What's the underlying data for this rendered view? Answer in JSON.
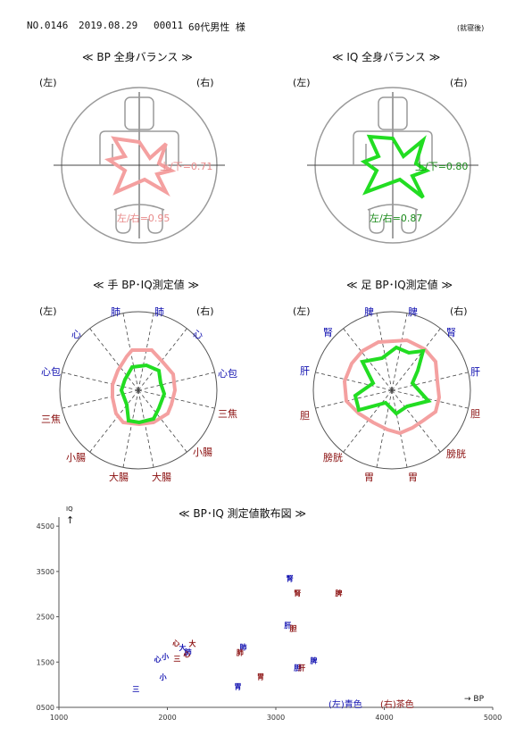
{
  "header": {
    "record_no": "NO.0146",
    "date": "2019.08.29",
    "patient_id": "00011",
    "patient": "60代男性 様",
    "note": "(就寝後)"
  },
  "bp_balance": {
    "title": "≪ BP 全身バランス ≫",
    "left": "(左)",
    "right": "(右)",
    "ud_label": "上/下=0.71",
    "lr_label": "左/右=0.95",
    "ud": 0.71,
    "lr": 0.95,
    "color": "#f4a0a0"
  },
  "iq_balance": {
    "title": "≪ IQ 全身バランス ≫",
    "left": "(左)",
    "right": "(右)",
    "ud_label": "上/下=0.80",
    "lr_label": "左/右=0.87",
    "ud": 0.8,
    "lr": 0.87,
    "color": "#22dd22"
  },
  "hand_radar": {
    "title": "≪ 手 BP･IQ測定値 ≫",
    "left": "(左)",
    "right": "(右)",
    "labels": {
      "lung_l": "肺",
      "lung_r": "肺",
      "heart_l": "心",
      "heart_r": "心",
      "pericardium_l": "心包",
      "pericardium_r": "心包",
      "sanjiao_l": "三焦",
      "sanjiao_r": "三焦",
      "small_int_l": "小腸",
      "small_int_r": "小腸",
      "large_int_l": "大腸",
      "large_int_r": "大腸"
    }
  },
  "foot_radar": {
    "title": "≪ 足 BP･IQ測定値 ≫",
    "left": "(左)",
    "right": "(右)",
    "labels": {
      "spleen_l": "脾",
      "spleen_r": "脾",
      "kidney_l": "腎",
      "kidney_r": "腎",
      "liver_l": "肝",
      "liver_r": "肝",
      "gall_l": "胆",
      "gall_r": "胆",
      "bladder_l": "膀胱",
      "bladder_r": "膀胱",
      "stomach_l": "胃",
      "stomach_r": "胃"
    }
  },
  "scatter": {
    "title": "≪ BP･IQ 測定値散布図 ≫",
    "y_axis_label": "IQ",
    "x_axis_label": "→ BP",
    "legend_left": "(左)青色",
    "legend_right": "(右)茶色",
    "colors": {
      "left": "#1010b0",
      "right": "#8b1010"
    }
  },
  "chart_data": {
    "type": "scatter",
    "title": "≪ BP･IQ 測定値散布図 ≫",
    "xlabel": "BP",
    "ylabel": "IQ",
    "xlim": [
      1000,
      5000
    ],
    "ylim": [
      500,
      4700
    ],
    "xticks": [
      "1000",
      "2000",
      "3000",
      "4000",
      "5000"
    ],
    "yticks": [
      "0500",
      "1500",
      "2500",
      "3500",
      "4500"
    ],
    "series": [
      {
        "name": "(左)青色",
        "points": [
          {
            "x": 1710,
            "y": 900,
            "label": "三"
          },
          {
            "x": 1910,
            "y": 1560,
            "label": "心"
          },
          {
            "x": 1980,
            "y": 1620,
            "label": "小"
          },
          {
            "x": 1960,
            "y": 1170,
            "label": "小"
          },
          {
            "x": 2140,
            "y": 1820,
            "label": "大"
          },
          {
            "x": 2190,
            "y": 1720,
            "label": "肺"
          },
          {
            "x": 2700,
            "y": 1830,
            "label": "肺"
          },
          {
            "x": 2650,
            "y": 960,
            "label": "胃"
          },
          {
            "x": 3130,
            "y": 3350,
            "label": "腎"
          },
          {
            "x": 3110,
            "y": 2310,
            "label": "肝"
          },
          {
            "x": 3200,
            "y": 1380,
            "label": "胆"
          },
          {
            "x": 3350,
            "y": 1540,
            "label": "脾"
          }
        ]
      },
      {
        "name": "(右)茶色",
        "points": [
          {
            "x": 2080,
            "y": 1920,
            "label": "心"
          },
          {
            "x": 2090,
            "y": 1570,
            "label": "三"
          },
          {
            "x": 2180,
            "y": 1670,
            "label": "心"
          },
          {
            "x": 2230,
            "y": 1910,
            "label": "大"
          },
          {
            "x": 2670,
            "y": 1710,
            "label": "肺"
          },
          {
            "x": 2860,
            "y": 1180,
            "label": "胃"
          },
          {
            "x": 3200,
            "y": 3020,
            "label": "腎"
          },
          {
            "x": 3160,
            "y": 2250,
            "label": "胆"
          },
          {
            "x": 3240,
            "y": 1380,
            "label": "肝"
          },
          {
            "x": 3580,
            "y": 3020,
            "label": "脾"
          }
        ]
      }
    ]
  }
}
